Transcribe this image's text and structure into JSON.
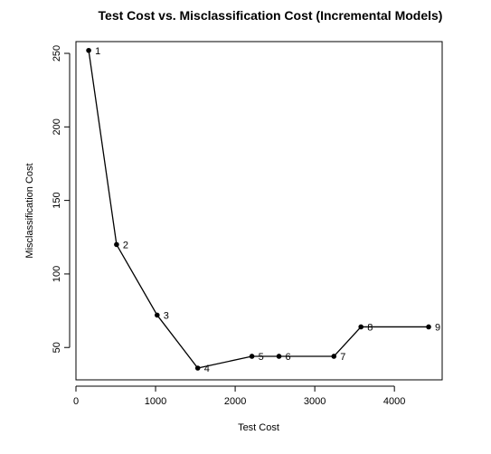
{
  "chart_data": {
    "type": "line",
    "title": "Test Cost vs. Misclassification Cost (Incremental Models)",
    "xlabel": "Test Cost",
    "ylabel": "Misclassification Cost",
    "xlim": [
      0,
      4600
    ],
    "ylim": [
      28,
      258
    ],
    "xticks": [
      0,
      1000,
      2000,
      3000,
      4000
    ],
    "yticks": [
      50,
      100,
      150,
      200,
      250
    ],
    "grid": false,
    "series": [
      {
        "color": "#000000",
        "points": [
          {
            "label": "1",
            "x": 160,
            "y": 252
          },
          {
            "label": "2",
            "x": 510,
            "y": 120
          },
          {
            "label": "3",
            "x": 1020,
            "y": 72
          },
          {
            "label": "4",
            "x": 1530,
            "y": 36
          },
          {
            "label": "5",
            "x": 2210,
            "y": 44
          },
          {
            "label": "6",
            "x": 2550,
            "y": 44
          },
          {
            "label": "7",
            "x": 3240,
            "y": 44
          },
          {
            "label": "8",
            "x": 3580,
            "y": 64
          },
          {
            "label": "9",
            "x": 4430,
            "y": 64
          }
        ]
      }
    ]
  }
}
